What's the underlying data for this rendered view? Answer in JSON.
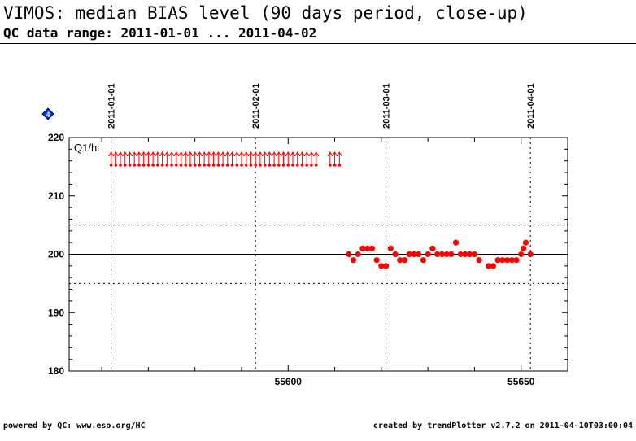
{
  "title": "VIMOS: median BIAS level (90 days period, close-up)",
  "subtitle": "QC data range: 2011-01-01 ... 2011-04-02",
  "footer_left": "powered by QC: www.eso.org/HC",
  "footer_right": "created by trendPlotter v2.7.2 on 2011-04-10T03:00:04",
  "panel_label": "Q1/hi",
  "info_icon": "info-diamond-icon",
  "colors": {
    "data": "#ff0000",
    "marker_blue": "#0033ff",
    "reference_line": "#000000"
  },
  "chart_data": {
    "type": "scatter",
    "title": "",
    "xlabel": "",
    "ylabel": "",
    "xlim": [
      55553,
      55660
    ],
    "ylim": [
      180,
      220
    ],
    "x_ticks": [
      55600,
      55650
    ],
    "y_ticks": [
      180,
      190,
      200,
      210,
      220
    ],
    "reference_line": 200,
    "threshold_lines": [
      195,
      205
    ],
    "date_markers": [
      {
        "label": "2011-01-01",
        "mjd": 55562
      },
      {
        "label": "2011-02-01",
        "mjd": 55593
      },
      {
        "label": "2011-03-01",
        "mjd": 55621
      },
      {
        "label": "2011-04-01",
        "mjd": 55652
      }
    ],
    "out_of_range_above_x": [
      55562,
      55563,
      55564,
      55565,
      55566,
      55567,
      55568,
      55569,
      55570,
      55571,
      55572,
      55573,
      55574,
      55575,
      55576,
      55577,
      55578,
      55579,
      55580,
      55581,
      55582,
      55583,
      55584,
      55585,
      55586,
      55587,
      55588,
      55589,
      55590,
      55591,
      55592,
      55593,
      55594,
      55595,
      55596,
      55597,
      55598,
      55599,
      55600,
      55601,
      55602,
      55603,
      55604,
      55605,
      55606,
      55609,
      55610,
      55611
    ],
    "points": [
      {
        "x": 55613,
        "y": 200
      },
      {
        "x": 55614,
        "y": 199
      },
      {
        "x": 55615,
        "y": 200
      },
      {
        "x": 55616,
        "y": 201
      },
      {
        "x": 55617,
        "y": 201
      },
      {
        "x": 55618,
        "y": 201
      },
      {
        "x": 55619,
        "y": 199
      },
      {
        "x": 55620,
        "y": 198
      },
      {
        "x": 55621,
        "y": 198
      },
      {
        "x": 55622,
        "y": 201
      },
      {
        "x": 55623,
        "y": 200
      },
      {
        "x": 55624,
        "y": 199
      },
      {
        "x": 55625,
        "y": 199
      },
      {
        "x": 55626,
        "y": 200
      },
      {
        "x": 55627,
        "y": 200
      },
      {
        "x": 55628,
        "y": 200
      },
      {
        "x": 55629,
        "y": 199
      },
      {
        "x": 55630,
        "y": 200
      },
      {
        "x": 55631,
        "y": 201
      },
      {
        "x": 55632,
        "y": 200
      },
      {
        "x": 55633,
        "y": 200
      },
      {
        "x": 55634,
        "y": 200
      },
      {
        "x": 55635,
        "y": 200
      },
      {
        "x": 55636,
        "y": 202
      },
      {
        "x": 55637,
        "y": 200
      },
      {
        "x": 55638,
        "y": 200
      },
      {
        "x": 55639,
        "y": 200
      },
      {
        "x": 55640,
        "y": 200
      },
      {
        "x": 55641,
        "y": 199
      },
      {
        "x": 55643,
        "y": 198
      },
      {
        "x": 55644,
        "y": 198
      },
      {
        "x": 55645,
        "y": 199
      },
      {
        "x": 55646,
        "y": 199
      },
      {
        "x": 55647,
        "y": 199
      },
      {
        "x": 55648,
        "y": 199
      },
      {
        "x": 55649,
        "y": 199
      },
      {
        "x": 55650,
        "y": 200
      },
      {
        "x": 55650.5,
        "y": 201
      },
      {
        "x": 55651,
        "y": 202
      },
      {
        "x": 55652,
        "y": 200
      }
    ]
  }
}
